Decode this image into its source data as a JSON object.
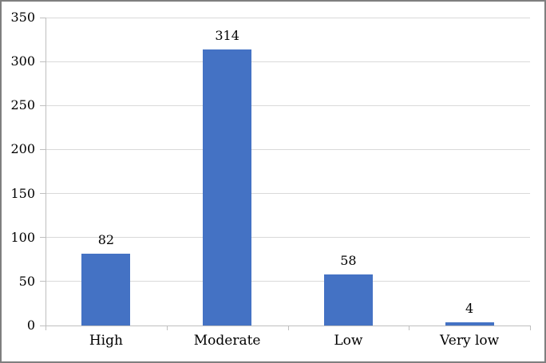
{
  "chart_data": {
    "type": "bar",
    "title": "",
    "xlabel": "",
    "ylabel": "",
    "categories": [
      "High",
      "Moderate",
      "Low",
      "Very low"
    ],
    "values": [
      82,
      314,
      58,
      4
    ],
    "data_labels": [
      "82",
      "314",
      "58",
      "4"
    ],
    "ylim": [
      0,
      350
    ],
    "ytick_interval": 50,
    "yticks": [
      0,
      50,
      100,
      150,
      200,
      250,
      300,
      350
    ],
    "grid": true,
    "legend_position": "none",
    "colors": {
      "bar": "#4472C4",
      "gridline": "#D9D9D9",
      "axis": "#BFBFBF",
      "border": "#7F7F7F",
      "text": "#000000",
      "background": "#FFFFFF"
    }
  }
}
